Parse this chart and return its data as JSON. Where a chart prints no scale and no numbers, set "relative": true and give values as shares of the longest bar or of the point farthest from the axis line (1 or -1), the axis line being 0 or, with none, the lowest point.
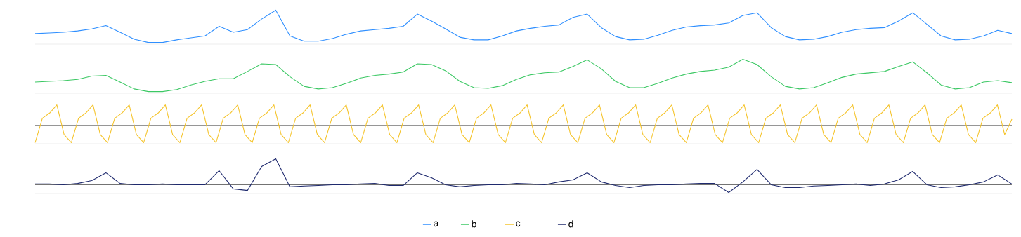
{
  "chart_data": [
    {
      "type": "line",
      "relative": true,
      "legend": "bottom",
      "categories": [
        null,
        null,
        null,
        null,
        null,
        null,
        null,
        null,
        null,
        null,
        null,
        null,
        null,
        null,
        null,
        null,
        null,
        null,
        null,
        null,
        null,
        null,
        null,
        null,
        null,
        null,
        null,
        null,
        null,
        null,
        null,
        null,
        null,
        null,
        null,
        null,
        null,
        null,
        null,
        null,
        null,
        null,
        null,
        null,
        null,
        null,
        null,
        null,
        null,
        null,
        null,
        null,
        null,
        null,
        null,
        null,
        null,
        null,
        null,
        null,
        null,
        null,
        null,
        null,
        null,
        null,
        null,
        null,
        null,
        null
      ],
      "series": [
        {
          "name": "a",
          "color": "#2f8fff",
          "values": [
            0.29,
            0.31,
            0.33,
            0.37,
            0.43,
            0.53,
            0.33,
            0.12,
            0.02,
            0.02,
            0.1,
            0.16,
            0.22,
            0.51,
            0.33,
            0.41,
            0.73,
            1.0,
            0.22,
            0.06,
            0.06,
            0.14,
            0.27,
            0.37,
            0.41,
            0.45,
            0.51,
            0.88,
            0.67,
            0.43,
            0.18,
            0.1,
            0.1,
            0.22,
            0.37,
            0.45,
            0.51,
            0.55,
            0.78,
            0.88,
            0.47,
            0.2,
            0.1,
            0.12,
            0.24,
            0.39,
            0.49,
            0.53,
            0.55,
            0.61,
            0.84,
            0.92,
            0.47,
            0.2,
            0.1,
            0.12,
            0.2,
            0.33,
            0.41,
            0.45,
            0.47,
            0.67,
            0.92,
            0.57,
            0.22,
            0.1,
            0.12,
            0.22,
            0.39,
            0.29
          ]
        }
      ]
    },
    {
      "type": "line",
      "relative": true,
      "legend": "bottom",
      "categories": [
        null,
        null,
        null,
        null,
        null,
        null,
        null,
        null,
        null,
        null,
        null,
        null,
        null,
        null,
        null,
        null,
        null,
        null,
        null,
        null,
        null,
        null,
        null,
        null,
        null,
        null,
        null,
        null,
        null,
        null,
        null,
        null,
        null,
        null,
        null,
        null,
        null,
        null,
        null,
        null,
        null,
        null,
        null,
        null,
        null,
        null,
        null,
        null,
        null,
        null,
        null,
        null,
        null,
        null,
        null,
        null,
        null,
        null,
        null,
        null,
        null,
        null,
        null,
        null,
        null,
        null,
        null,
        null,
        null,
        null
      ],
      "series": [
        {
          "name": "b",
          "color": "#3cc864",
          "values": [
            0.31,
            0.33,
            0.35,
            0.39,
            0.49,
            0.51,
            0.31,
            0.1,
            0.02,
            0.02,
            0.08,
            0.22,
            0.33,
            0.41,
            0.41,
            0.63,
            0.86,
            0.84,
            0.47,
            0.18,
            0.1,
            0.14,
            0.27,
            0.43,
            0.51,
            0.55,
            0.61,
            0.86,
            0.84,
            0.65,
            0.33,
            0.14,
            0.12,
            0.2,
            0.39,
            0.53,
            0.59,
            0.61,
            0.78,
            0.98,
            0.71,
            0.33,
            0.14,
            0.14,
            0.27,
            0.43,
            0.55,
            0.63,
            0.67,
            0.76,
            1.0,
            0.84,
            0.47,
            0.18,
            0.1,
            0.14,
            0.29,
            0.45,
            0.55,
            0.59,
            0.63,
            0.78,
            0.92,
            0.59,
            0.22,
            0.1,
            0.14,
            0.31,
            0.35,
            0.29
          ]
        }
      ]
    },
    {
      "type": "line",
      "relative": true,
      "legend": "bottom",
      "categories": [
        null,
        null,
        null,
        null,
        null,
        null,
        null,
        null,
        null,
        null,
        null,
        null,
        null,
        null,
        null,
        null,
        null,
        null,
        null,
        null,
        null,
        null,
        null,
        null,
        null,
        null,
        null,
        null,
        null,
        null,
        null,
        null,
        null,
        null,
        null,
        null,
        null,
        null,
        null,
        null,
        null,
        null,
        null,
        null,
        null,
        null,
        null,
        null,
        null,
        null,
        null,
        null,
        null,
        null,
        null,
        null,
        null,
        null,
        null,
        null,
        null,
        null,
        null,
        null,
        null,
        null,
        null,
        null,
        null,
        null,
        null,
        null,
        null,
        null,
        null,
        null,
        null,
        null,
        null,
        null,
        null,
        null,
        null,
        null,
        null,
        null,
        null,
        null,
        null,
        null,
        null,
        null,
        null,
        null,
        null,
        null,
        null,
        null,
        null,
        null,
        null,
        null,
        null,
        null,
        null,
        null,
        null,
        null,
        null,
        null,
        null,
        null,
        null,
        null,
        null,
        null,
        null,
        null,
        null,
        null,
        null,
        null,
        null,
        null,
        null,
        null,
        null,
        null,
        null,
        null,
        null,
        null,
        null,
        null,
        null,
        null
      ],
      "series": [
        {
          "name": "c",
          "color": "#f5c42c",
          "values": [
            -0.84,
            0.35,
            0.6,
            1.0,
            -0.45,
            -0.84,
            0.35,
            0.6,
            1.0,
            -0.45,
            -0.84,
            0.35,
            0.6,
            1.0,
            -0.45,
            -0.84,
            0.35,
            0.6,
            1.0,
            -0.45,
            -0.84,
            0.35,
            0.6,
            1.0,
            -0.45,
            -0.84,
            0.35,
            0.6,
            1.0,
            -0.45,
            -0.84,
            0.35,
            0.6,
            1.0,
            -0.45,
            -0.84,
            0.35,
            0.6,
            1.0,
            -0.45,
            -0.84,
            0.35,
            0.6,
            1.0,
            -0.45,
            -0.84,
            0.35,
            0.6,
            1.0,
            -0.45,
            -0.84,
            0.35,
            0.6,
            1.0,
            -0.45,
            -0.84,
            0.35,
            0.6,
            1.0,
            -0.45,
            -0.84,
            0.35,
            0.6,
            1.0,
            -0.45,
            -0.84,
            0.35,
            0.6,
            1.0,
            -0.45,
            -0.84,
            0.35,
            0.6,
            1.0,
            -0.45,
            -0.84,
            0.35,
            0.6,
            1.0,
            -0.45,
            -0.84,
            0.35,
            0.6,
            1.0,
            -0.45,
            -0.84,
            0.35,
            0.6,
            1.0,
            -0.45,
            -0.84,
            0.35,
            0.6,
            1.0,
            -0.45,
            -0.84,
            0.35,
            0.6,
            1.0,
            -0.45,
            -0.84,
            0.35,
            0.6,
            1.0,
            -0.45,
            -0.84,
            0.35,
            0.6,
            1.0,
            -0.45,
            -0.84,
            0.35,
            0.6,
            1.0,
            -0.45,
            -0.84,
            0.35,
            0.6,
            1.0,
            -0.45,
            -0.84,
            0.35,
            0.6,
            1.0,
            -0.45,
            -0.84,
            0.35,
            0.6,
            1.0,
            -0.45,
            -0.84,
            0.35,
            0.6,
            1.0,
            -0.45,
            0.3
          ]
        }
      ]
    },
    {
      "type": "line",
      "relative": true,
      "legend": "bottom",
      "categories": [
        null,
        null,
        null,
        null,
        null,
        null,
        null,
        null,
        null,
        null,
        null,
        null,
        null,
        null,
        null,
        null,
        null,
        null,
        null,
        null,
        null,
        null,
        null,
        null,
        null,
        null,
        null,
        null,
        null,
        null,
        null,
        null,
        null,
        null,
        null,
        null,
        null,
        null,
        null,
        null,
        null,
        null,
        null,
        null,
        null,
        null,
        null,
        null,
        null,
        null,
        null,
        null,
        null,
        null,
        null,
        null,
        null,
        null,
        null,
        null,
        null,
        null,
        null,
        null,
        null,
        null,
        null,
        null,
        null,
        null
      ],
      "series": [
        {
          "name": "d",
          "color": "#1f2a6e",
          "values": [
            0.03,
            0.03,
            0,
            0.05,
            0.16,
            0.46,
            0.05,
            0,
            0,
            0.03,
            0,
            0,
            0,
            0.54,
            -0.16,
            -0.22,
            0.7,
            1.0,
            -0.08,
            -0.05,
            -0.03,
            0,
            0,
            0.03,
            0.05,
            -0.03,
            -0.03,
            0.46,
            0.27,
            0,
            -0.08,
            -0.03,
            0,
            0,
            0.05,
            0.03,
            0,
            0.11,
            0.19,
            0.46,
            0.11,
            -0.03,
            -0.11,
            -0.03,
            0,
            0,
            0.03,
            0.05,
            0.05,
            -0.3,
            0.11,
            0.59,
            0,
            -0.11,
            -0.11,
            -0.05,
            -0.03,
            0,
            0.03,
            -0.03,
            0.03,
            0.19,
            0.51,
            0,
            -0.11,
            -0.08,
            0,
            0.11,
            0.38,
            0.03
          ]
        }
      ]
    }
  ]
}
